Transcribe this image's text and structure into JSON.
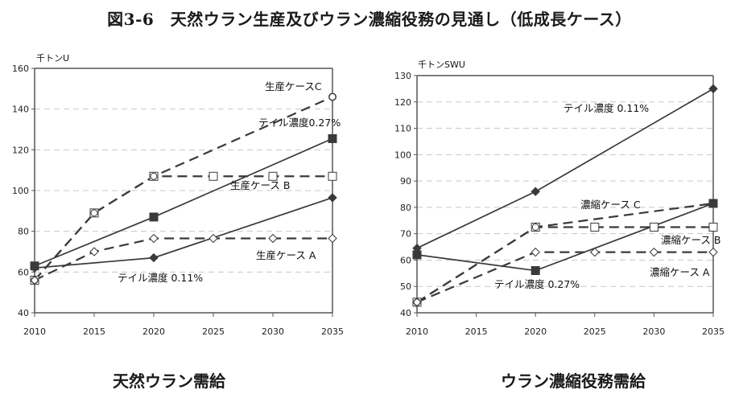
{
  "title": "図3-6　天然ウラン生産及びウラン濃縮役務の見通し（低成長ケース）",
  "colors": {
    "line": "#3a3a3a",
    "grid": "#c8c8c8",
    "axis": "#555555"
  },
  "chart_data": [
    {
      "type": "line",
      "title": "天然ウラン需給",
      "ylabel": "千トンU",
      "xlabel": "",
      "x": [
        2010,
        2015,
        2020,
        2025,
        2030,
        2035
      ],
      "x_ticks": [
        "2010",
        "2015",
        "2020",
        "2025",
        "2030",
        "2035"
      ],
      "ylim": [
        40,
        160
      ],
      "y_ticks": [
        "40",
        "60",
        "80",
        "100",
        "120",
        "140",
        "160"
      ],
      "grid": true,
      "series": [
        {
          "name": "生産ケースC",
          "style": "dashed",
          "marker": "circle-open",
          "x": [
            2010,
            2015,
            2020,
            2035
          ],
          "values": [
            56,
            89,
            107,
            146
          ]
        },
        {
          "name": "生産ケース B",
          "style": "dashed",
          "marker": "square-open",
          "x": [
            2010,
            2015,
            2020,
            2025,
            2030,
            2035
          ],
          "values": [
            56,
            89,
            107,
            107,
            107,
            107
          ]
        },
        {
          "name": "生産ケース A",
          "style": "dashed",
          "marker": "diamond-open",
          "x": [
            2010,
            2015,
            2020,
            2025,
            2030,
            2035
          ],
          "values": [
            56,
            70,
            76.5,
            76.5,
            76.5,
            76.5
          ]
        },
        {
          "name": "テイル濃度0.27%",
          "style": "solid",
          "marker": "square-filled",
          "x": [
            2010,
            2020,
            2035
          ],
          "values": [
            63,
            87,
            125.5
          ]
        },
        {
          "name": "テイル濃度 0.11%",
          "style": "solid",
          "marker": "diamond-filled",
          "x": [
            2010,
            2020,
            2035
          ],
          "values": [
            62,
            67,
            96.5
          ]
        }
      ]
    },
    {
      "type": "line",
      "title": "ウラン濃縮役務需給",
      "ylabel": "千トンSWU",
      "xlabel": "",
      "x": [
        2010,
        2015,
        2020,
        2025,
        2030,
        2035
      ],
      "x_ticks": [
        "2010",
        "2015",
        "2020",
        "2025",
        "2030",
        "2035"
      ],
      "ylim": [
        40,
        130
      ],
      "y_ticks": [
        "40",
        "50",
        "60",
        "70",
        "80",
        "90",
        "100",
        "110",
        "120",
        "130"
      ],
      "grid": true,
      "series": [
        {
          "name": "テイル濃度 0.11%",
          "style": "solid",
          "marker": "diamond-filled",
          "x": [
            2010,
            2020,
            2035
          ],
          "values": [
            64.5,
            86,
            125
          ]
        },
        {
          "name": "濃縮ケース C",
          "style": "dashed",
          "marker": "circle-open",
          "x": [
            2010,
            2020,
            2035
          ],
          "values": [
            44,
            72.5,
            81.5
          ]
        },
        {
          "name": "濃縮ケース B",
          "style": "dashed",
          "marker": "square-open",
          "x": [
            2010,
            2020,
            2025,
            2030,
            2035
          ],
          "values": [
            44,
            72.5,
            72.5,
            72.5,
            72.5
          ]
        },
        {
          "name": "濃縮ケース A",
          "style": "dashed",
          "marker": "diamond-open",
          "x": [
            2010,
            2020,
            2025,
            2030,
            2035
          ],
          "values": [
            44,
            63,
            63,
            63,
            63
          ]
        },
        {
          "name": "テイル濃度 0.27%",
          "style": "solid",
          "marker": "square-filled",
          "x": [
            2010,
            2020,
            2035
          ],
          "values": [
            62,
            56,
            81.5
          ]
        }
      ]
    }
  ]
}
